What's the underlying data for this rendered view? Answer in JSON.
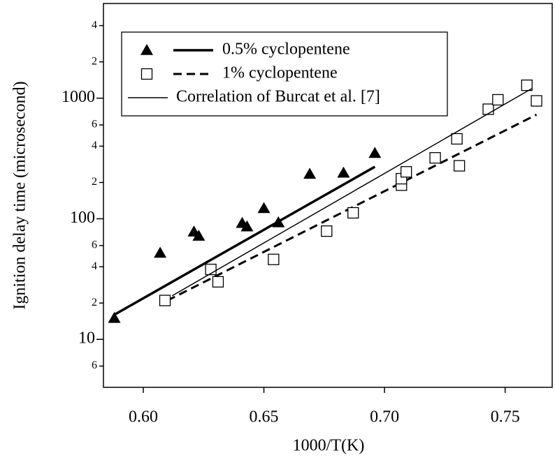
{
  "chart_data": {
    "type": "scatter",
    "x_label": "1000/T(K)",
    "y_label": "Ignition delay time (microsecond)",
    "log_y": true,
    "xlim": [
      0.5835,
      0.7695
    ],
    "ylim": [
      4,
      6100
    ],
    "xticks": [
      {
        "value": 0.6,
        "label": "0.60"
      },
      {
        "value": 0.65,
        "label": "0.65"
      },
      {
        "value": 0.7,
        "label": "0.70"
      },
      {
        "value": 0.75,
        "label": "0.75"
      }
    ],
    "yticks": [
      {
        "value": 6,
        "label": "6"
      },
      10,
      {
        "value": 20,
        "label": "2"
      },
      {
        "value": 40,
        "label": "4"
      },
      {
        "value": 60,
        "label": "6"
      },
      100,
      {
        "value": 200,
        "label": "2"
      },
      {
        "value": 400,
        "label": "4"
      },
      {
        "value": 600,
        "label": "6"
      },
      1000,
      {
        "value": 2000,
        "label": "2"
      },
      {
        "value": 4000,
        "label": "4"
      }
    ],
    "legend": "top-left",
    "series": [
      {
        "name": "0.5% cyclopentene",
        "marker": "triangle",
        "color": "#000000",
        "line_style": "thick",
        "x": [
          0.588,
          0.607,
          0.621,
          0.623,
          0.641,
          0.643,
          0.65,
          0.656,
          0.669,
          0.683,
          0.696
        ],
        "values": [
          15,
          52,
          78,
          72,
          92,
          86,
          122,
          93,
          235,
          240,
          350
        ],
        "fit_x": [
          0.588,
          0.696
        ],
        "fit_values": [
          16,
          270
        ]
      },
      {
        "name": "1% cyclopentene",
        "marker": "square",
        "color": "#000000",
        "line_style": "dashed",
        "x": [
          0.609,
          0.628,
          0.631,
          0.654,
          0.676,
          0.687,
          0.707,
          0.707,
          0.709,
          0.721,
          0.73,
          0.731,
          0.743,
          0.747,
          0.759,
          0.763
        ],
        "values": [
          21,
          38,
          30,
          46,
          79,
          112,
          190,
          215,
          245,
          320,
          460,
          275,
          810,
          970,
          1280,
          950
        ],
        "fit_x": [
          0.61,
          0.763
        ],
        "fit_values": [
          21,
          730
        ]
      },
      {
        "name": "Correlation of Burcat et al. [7]",
        "color": "#000000",
        "line_style": "thin",
        "fit_x": [
          0.612,
          0.761
        ],
        "fit_values": [
          23,
          1200
        ]
      }
    ]
  }
}
